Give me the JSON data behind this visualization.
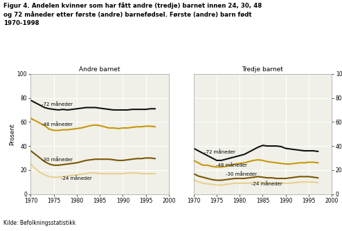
{
  "title": "Figur 4. Andelen kvinner som har fått andre (tredje) barnet innen 24, 30, 48\nog 72 måneder etter første (andre) barnefødsel. Første (andre) barn født\n1970-1998",
  "xlabel_left": "Andre barnet",
  "xlabel_right": "Tredje barnet",
  "ylabel": "Prosent",
  "source": "Kilde: Befolkningsstatistikk",
  "years": [
    1970,
    1971,
    1972,
    1973,
    1974,
    1975,
    1976,
    1977,
    1978,
    1979,
    1980,
    1981,
    1982,
    1983,
    1984,
    1985,
    1986,
    1987,
    1988,
    1989,
    1990,
    1991,
    1992,
    1993,
    1994,
    1995,
    1996,
    1997
  ],
  "left_72": [
    78,
    76,
    74,
    72,
    71,
    70.5,
    70,
    70.5,
    70,
    70.5,
    71,
    71.5,
    72,
    72,
    72,
    71.5,
    71,
    70.5,
    70,
    70,
    70,
    70,
    70.5,
    70.5,
    70.5,
    70.5,
    71,
    71
  ],
  "left_48": [
    63,
    61,
    59,
    57,
    54,
    53,
    53,
    53.5,
    53.5,
    54,
    54.5,
    55,
    56,
    57,
    57.5,
    57,
    56,
    55,
    55,
    54.5,
    55,
    55,
    55.5,
    56,
    56,
    56.5,
    56.5,
    56
  ],
  "left_30": [
    36,
    33,
    30,
    27,
    25,
    24,
    24,
    24.5,
    25,
    25.5,
    26,
    27,
    28,
    28.5,
    29,
    29,
    29,
    29,
    28.5,
    28,
    28,
    28.5,
    29,
    29.5,
    29.5,
    30,
    30,
    29.5
  ],
  "left_24": [
    25,
    21,
    18,
    16,
    14.5,
    14,
    14,
    14.5,
    15,
    15.5,
    16,
    16.5,
    17,
    17.5,
    17.5,
    17,
    17,
    17,
    17,
    17,
    17,
    17.5,
    17.5,
    17.5,
    17,
    17,
    17,
    17
  ],
  "right_72": [
    38,
    36,
    34,
    32,
    30,
    28,
    28,
    29,
    30,
    31,
    32,
    33,
    35,
    37,
    39,
    40.5,
    40,
    40,
    40,
    39.5,
    38,
    37.5,
    37,
    36.5,
    36,
    36,
    36,
    35.5
  ],
  "right_48": [
    28,
    26,
    24,
    24,
    23,
    22.5,
    22.5,
    23,
    24,
    25,
    25.5,
    26,
    27,
    28,
    28.5,
    28,
    27,
    26.5,
    26,
    25.5,
    25,
    25,
    25.5,
    26,
    26,
    26.5,
    26.5,
    26
  ],
  "right_30": [
    17,
    15,
    14,
    13,
    12,
    11.5,
    11.5,
    12,
    12.5,
    13,
    13,
    13,
    13.5,
    14,
    14.5,
    14,
    13.5,
    13.5,
    13,
    13,
    13,
    13.5,
    14,
    14.5,
    14.5,
    14.5,
    14,
    13.5
  ],
  "right_24": [
    12,
    10,
    9,
    8.5,
    8,
    7.5,
    7.5,
    8,
    8.5,
    9,
    9,
    9,
    9,
    9.5,
    10,
    9.5,
    9,
    9,
    9,
    9,
    9,
    9,
    9.5,
    10,
    10,
    10,
    10,
    9.5
  ],
  "color_72": "#111111",
  "color_48": "#c8960c",
  "color_30": "#7a5500",
  "color_24": "#e8d090",
  "ylim": [
    0,
    100
  ],
  "yticks": [
    0,
    20,
    40,
    60,
    80,
    100
  ],
  "xlim": [
    1970,
    2000
  ],
  "xticks": [
    1970,
    1975,
    1980,
    1985,
    1990,
    1995,
    2000
  ],
  "bg_color": "#f0f0e8",
  "line_width": 1.5
}
